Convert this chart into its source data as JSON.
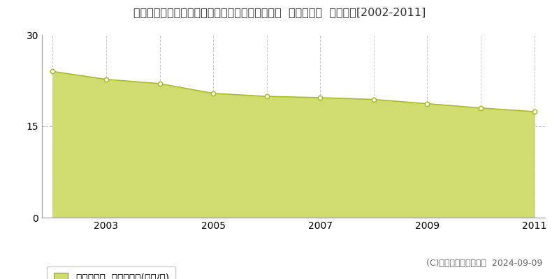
{
  "title": "愛知県丹羽郡大口町大字秋田字東郷前９２番３外  基準地価格  地価推移[2002-2011]",
  "years": [
    2002,
    2003,
    2004,
    2005,
    2006,
    2007,
    2008,
    2009,
    2010,
    2011
  ],
  "values": [
    24.0,
    22.7,
    22.0,
    20.4,
    19.9,
    19.7,
    19.4,
    18.7,
    18.0,
    17.4
  ],
  "fill_color": "#cedd6e",
  "line_color": "#aabb33",
  "marker_color": "#ffffff",
  "marker_edge_color": "#aabb33",
  "background_color": "#ffffff",
  "grid_color": "#bbbbbb",
  "ylim": [
    0,
    30
  ],
  "yticks": [
    0,
    15,
    30
  ],
  "legend_label": "基準地価格  平均坪単価(万円/坪)",
  "legend_marker_color": "#cedd6e",
  "copyright_text": "(C)土地価格ドットコム  2024-09-09",
  "title_fontsize": 11.5,
  "tick_fontsize": 10,
  "legend_fontsize": 10,
  "copyright_fontsize": 9
}
